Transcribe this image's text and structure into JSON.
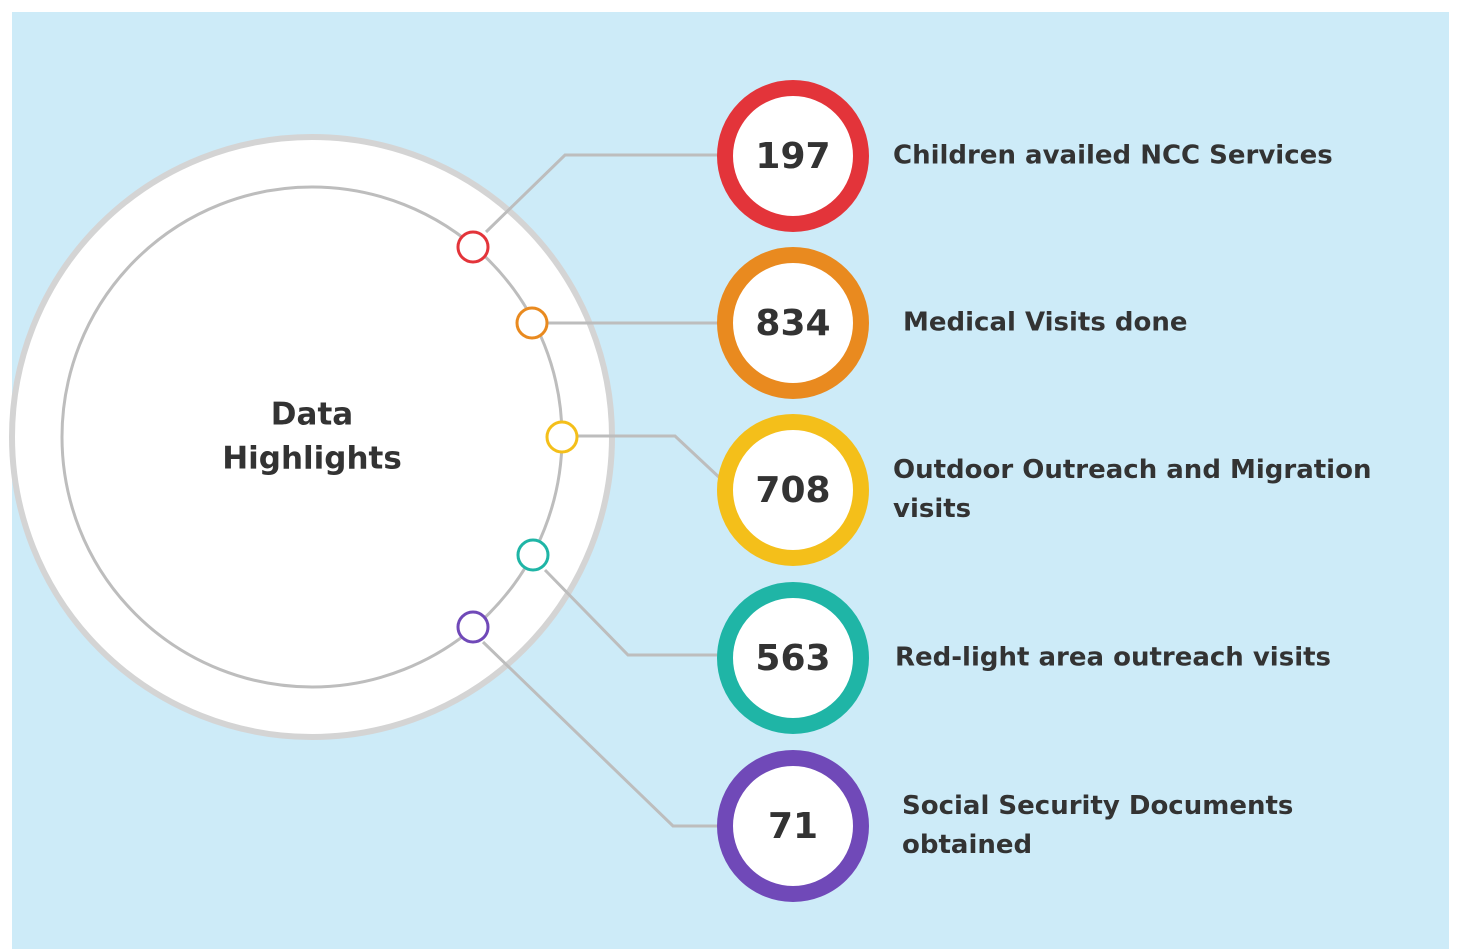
{
  "title": [
    "Data",
    "Highlights"
  ],
  "items": [
    {
      "value": "197",
      "label": [
        "Children availed NCC Services"
      ],
      "color": "#e3343a"
    },
    {
      "value": "834",
      "label": [
        "Medical Visits done"
      ],
      "color": "#e98a1f"
    },
    {
      "value": "708",
      "label": [
        "Outdoor Outreach and Migration",
        "visits"
      ],
      "color": "#f4bf1a"
    },
    {
      "value": "563",
      "label": [
        "Red-light area outreach visits"
      ],
      "color": "#1fb5a6"
    },
    {
      "value": "71",
      "label": [
        "Social Security Documents",
        "obtained"
      ],
      "color": "#7049b8"
    }
  ]
}
